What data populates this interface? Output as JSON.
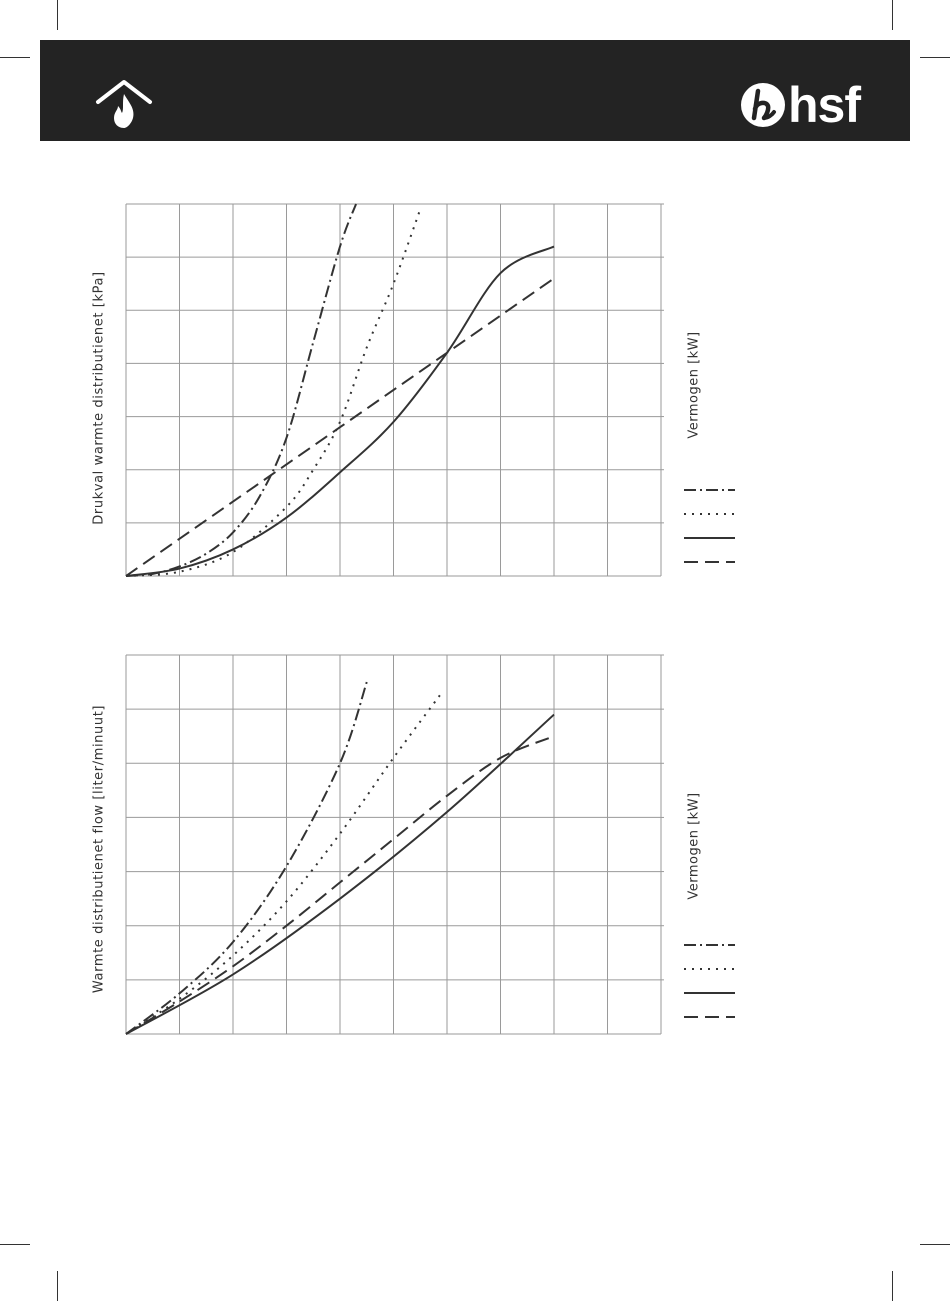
{
  "header": {
    "background": "#232323",
    "icon": "home-flame-icon",
    "brand_icon": "hsf-logo-icon",
    "brand_text": "hsf"
  },
  "colors": {
    "line": "#333333",
    "grid": "#9a9a9a",
    "text": "#333333"
  },
  "chart_data": [
    {
      "type": "line",
      "ylabel": "Drukval warmte distributienet [kPa]",
      "legend_title": "Vermogen [kW]",
      "legend_position": "right",
      "grid": true,
      "xlim": [
        0,
        10
      ],
      "ylim": [
        0,
        7
      ],
      "series": [
        {
          "style": "dashdot",
          "points": [
            [
              0,
              0
            ],
            [
              0.5,
              0.04
            ],
            [
              1,
              0.18
            ],
            [
              1.5,
              0.42
            ],
            [
              2,
              0.82
            ],
            [
              2.5,
              1.5
            ],
            [
              3,
              2.6
            ],
            [
              3.5,
              4.4
            ],
            [
              4,
              6.2
            ],
            [
              4.3,
              7.0
            ]
          ]
        },
        {
          "style": "dotted",
          "points": [
            [
              0,
              0
            ],
            [
              1,
              0.08
            ],
            [
              2,
              0.45
            ],
            [
              3,
              1.3
            ],
            [
              3.5,
              2.0
            ],
            [
              4,
              2.9
            ],
            [
              4.5,
              4.3
            ],
            [
              5,
              5.5
            ],
            [
              5.5,
              6.9
            ]
          ]
        },
        {
          "style": "solid",
          "points": [
            [
              0,
              0
            ],
            [
              1,
              0.14
            ],
            [
              2,
              0.5
            ],
            [
              3,
              1.1
            ],
            [
              4,
              1.95
            ],
            [
              5,
              2.9
            ],
            [
              6,
              4.2
            ],
            [
              7,
              5.7
            ],
            [
              8,
              6.2
            ]
          ]
        },
        {
          "style": "dashed",
          "points": [
            [
              0,
              0
            ],
            [
              8,
              5.6
            ]
          ]
        }
      ]
    },
    {
      "type": "line",
      "ylabel": "Warmte distributienet flow [liter/minuut]",
      "legend_title": "Vermogen [kW]",
      "legend_position": "right",
      "grid": true,
      "xlim": [
        0,
        10
      ],
      "ylim": [
        0,
        7
      ],
      "series": [
        {
          "style": "dashdot",
          "points": [
            [
              0,
              0
            ],
            [
              1,
              0.75
            ],
            [
              2,
              1.7
            ],
            [
              3,
              3.1
            ],
            [
              4,
              5.0
            ],
            [
              4.5,
              6.5
            ]
          ]
        },
        {
          "style": "dotted",
          "points": [
            [
              0,
              0
            ],
            [
              1,
              0.65
            ],
            [
              2,
              1.45
            ],
            [
              3,
              2.45
            ],
            [
              4,
              3.7
            ],
            [
              5,
              5.1
            ],
            [
              5.9,
              6.3
            ]
          ]
        },
        {
          "style": "solid",
          "points": [
            [
              0,
              0
            ],
            [
              2,
              1.1
            ],
            [
              4,
              2.5
            ],
            [
              6,
              4.1
            ],
            [
              8,
              5.9
            ]
          ]
        },
        {
          "style": "dashed",
          "points": [
            [
              0,
              0
            ],
            [
              1,
              0.6
            ],
            [
              2,
              1.25
            ],
            [
              3,
              2.0
            ],
            [
              4,
              2.8
            ],
            [
              5,
              3.6
            ],
            [
              6,
              4.4
            ],
            [
              7,
              5.1
            ],
            [
              8,
              5.5
            ]
          ]
        }
      ]
    }
  ]
}
